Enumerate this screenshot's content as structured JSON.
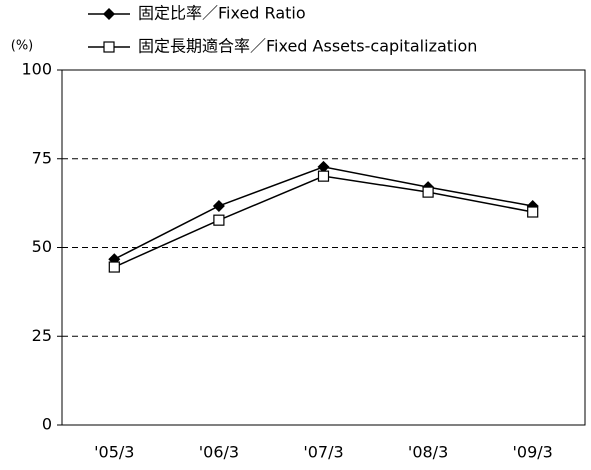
{
  "chart_data": {
    "type": "line",
    "y_axis_label": "(%)",
    "categories": [
      "'05/3",
      "'06/3",
      "'07/3",
      "'08/3",
      "'09/3"
    ],
    "series": [
      {
        "name": "固定比率／Fixed Ratio",
        "color": "#000000",
        "marker": "diamond",
        "values": [
          46.7,
          61.7,
          72.7,
          67.0,
          61.7
        ]
      },
      {
        "name": "固定長期適合率／Fixed Assets-capitalization",
        "color": "#000000",
        "marker": "square",
        "values": [
          44.5,
          57.7,
          70.1,
          65.6,
          60.0
        ]
      }
    ],
    "ylim": [
      0,
      100
    ],
    "yticks": [
      0,
      25,
      50,
      75,
      100
    ],
    "grid": true
  }
}
